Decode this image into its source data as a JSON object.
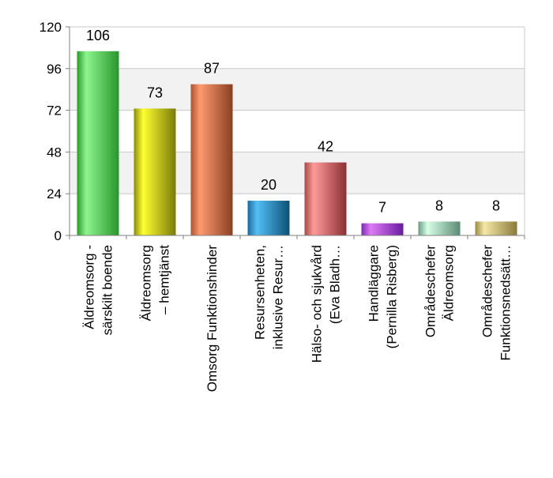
{
  "chart_data": {
    "type": "bar",
    "title": "",
    "xlabel": "",
    "ylabel": "",
    "ylim": [
      0,
      120
    ],
    "yticks": [
      0,
      24,
      48,
      72,
      96,
      120
    ],
    "grid": true,
    "legend": "none",
    "categories": [
      [
        "Äldreomsorg -",
        "särskilt boende"
      ],
      [
        "Äldreomsorg",
        "– hemtjänst"
      ],
      [
        "Omsorg Funktionshinder"
      ],
      [
        "Resursenheten,",
        "inklusive Resur…"
      ],
      [
        "Hälso- och sjukvård",
        "(Eva Bladh…"
      ],
      [
        "Handläggare",
        "(Pernilla Risberg)"
      ],
      [
        "Områdeschefer",
        "Äldreomsorg"
      ],
      [
        "Områdeschefer",
        "Funktionsnedsätt…"
      ]
    ],
    "values": [
      106,
      73,
      87,
      20,
      42,
      7,
      8,
      8
    ],
    "data_labels": [
      "106",
      "73",
      "87",
      "20",
      "42",
      "7",
      "8",
      "8"
    ],
    "colors": [
      [
        "#2a9a2a",
        "#8ff58f",
        "#27962a"
      ],
      [
        "#8a8a10",
        "#ffff30",
        "#7a7a0a"
      ],
      [
        "#a9552f",
        "#ff9a70",
        "#8a3f22"
      ],
      [
        "#1a6a9a",
        "#55bff5",
        "#0d5078"
      ],
      [
        "#a84a4a",
        "#ff9a9a",
        "#8a2f35"
      ],
      [
        "#7a2ab0",
        "#dd7cf5",
        "#6a1aa0"
      ],
      [
        "#6a9a82",
        "#d8ffe8",
        "#5a8a72"
      ],
      [
        "#9a8a4a",
        "#f5e8a5",
        "#8a7a3a"
      ]
    ]
  }
}
